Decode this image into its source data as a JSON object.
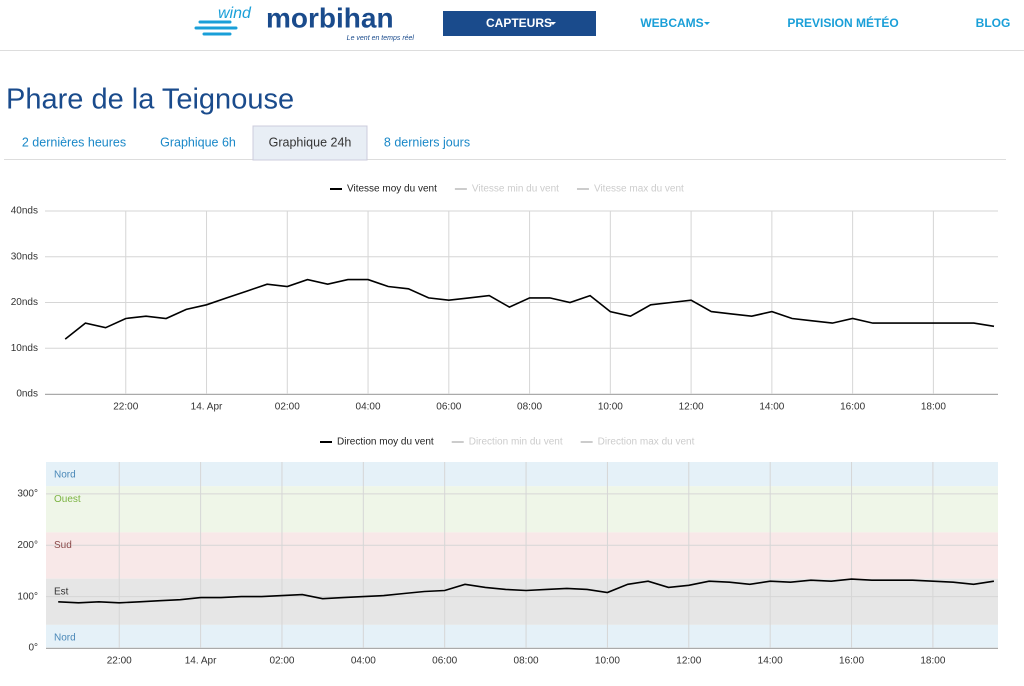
{
  "header": {
    "logo_wind": "wind",
    "logo_brand": "morbihan",
    "tagline": "Le vent en temps réel",
    "nav": [
      "CAPTEURS",
      "WEBCAMS",
      "PREVISION MÉTÉO",
      "BLOG"
    ]
  },
  "page_title": "Phare de la Teignouse",
  "tabs": [
    "2 dernières heures",
    "Graphique 6h",
    "Graphique 24h",
    "8 derniers jours"
  ],
  "active_tab": 2,
  "chart_data": [
    {
      "type": "line",
      "series": [
        {
          "name": "Vitesse moy du vent",
          "color": "#000000",
          "values": [
            12,
            15.5,
            14.5,
            16.5,
            17,
            16.5,
            18.5,
            19.5,
            21,
            22.5,
            24,
            23.5,
            25,
            24,
            25,
            25,
            23.5,
            23,
            21,
            20.5,
            21,
            21.5,
            19,
            21,
            21,
            20,
            21.5,
            18,
            17,
            19.5,
            20,
            20.5,
            18,
            17.5,
            17,
            18,
            16.5,
            16,
            15.5,
            16.5,
            15.5,
            15.5,
            15.5,
            15.5,
            15.5,
            15.5,
            14.8
          ]
        }
      ],
      "hidden_series": [
        "Vitesse min du vent",
        "Vitesse max du vent"
      ],
      "x": [
        20.5,
        21,
        21.5,
        22,
        22.5,
        23,
        23.5,
        24,
        24.5,
        25,
        25.5,
        26,
        26.5,
        27,
        27.5,
        28,
        28.5,
        29,
        29.5,
        30,
        30.5,
        31,
        31.5,
        32,
        32.5,
        33,
        33.5,
        34,
        34.5,
        35,
        35.5,
        36,
        36.5,
        37,
        37.5,
        38,
        38.5,
        39,
        39.5,
        40,
        40.5,
        41,
        41.5,
        42,
        42.5,
        43,
        43.5
      ],
      "xlim": [
        20,
        43.6
      ],
      "xticks": [
        {
          "value": 22,
          "label": "22:00"
        },
        {
          "value": 24,
          "label": "14. Apr"
        },
        {
          "value": 26,
          "label": "02:00"
        },
        {
          "value": 28,
          "label": "04:00"
        },
        {
          "value": 30,
          "label": "06:00"
        },
        {
          "value": 32,
          "label": "08:00"
        },
        {
          "value": 34,
          "label": "10:00"
        },
        {
          "value": 36,
          "label": "12:00"
        },
        {
          "value": 38,
          "label": "14:00"
        },
        {
          "value": 40,
          "label": "16:00"
        },
        {
          "value": 42,
          "label": "18:00"
        }
      ],
      "ylim": [
        0,
        40
      ],
      "yticks": [
        {
          "value": 0,
          "label": "0nds"
        },
        {
          "value": 10,
          "label": "10nds"
        },
        {
          "value": 20,
          "label": "20nds"
        },
        {
          "value": 30,
          "label": "30nds"
        },
        {
          "value": 40,
          "label": "40nds"
        }
      ],
      "grid": true
    },
    {
      "type": "line",
      "series": [
        {
          "name": "Direction moy du vent",
          "color": "#000000",
          "values": [
            90,
            88,
            90,
            88,
            90,
            92,
            94,
            98,
            98,
            100,
            100,
            102,
            104,
            96,
            98,
            100,
            102,
            106,
            110,
            112,
            124,
            118,
            114,
            112,
            114,
            116,
            114,
            108,
            124,
            130,
            118,
            122,
            130,
            128,
            124,
            130,
            128,
            132,
            130,
            134,
            132,
            132,
            132,
            130,
            128,
            124,
            130
          ]
        }
      ],
      "hidden_series": [
        "Direction min du vent",
        "Direction max du vent"
      ],
      "x": [
        20.5,
        21,
        21.5,
        22,
        22.5,
        23,
        23.5,
        24,
        24.5,
        25,
        25.5,
        26,
        26.5,
        27,
        27.5,
        28,
        28.5,
        29,
        29.5,
        30,
        30.5,
        31,
        31.5,
        32,
        32.5,
        33,
        33.5,
        34,
        34.5,
        35,
        35.5,
        36,
        36.5,
        37,
        37.5,
        38,
        38.5,
        39,
        39.5,
        40,
        40.5,
        41,
        41.5,
        42,
        42.5,
        43,
        43.5
      ],
      "xlim": [
        20.2,
        43.6
      ],
      "xticks": [
        {
          "value": 22,
          "label": "22:00"
        },
        {
          "value": 24,
          "label": "14. Apr"
        },
        {
          "value": 26,
          "label": "02:00"
        },
        {
          "value": 28,
          "label": "04:00"
        },
        {
          "value": 30,
          "label": "06:00"
        },
        {
          "value": 32,
          "label": "08:00"
        },
        {
          "value": 34,
          "label": "10:00"
        },
        {
          "value": 36,
          "label": "12:00"
        },
        {
          "value": 38,
          "label": "14:00"
        },
        {
          "value": 40,
          "label": "16:00"
        },
        {
          "value": 42,
          "label": "18:00"
        }
      ],
      "ylim": [
        0,
        362
      ],
      "yticks": [
        {
          "value": 0,
          "label": "0°"
        },
        {
          "value": 100,
          "label": "100°"
        },
        {
          "value": 200,
          "label": "200°"
        },
        {
          "value": 300,
          "label": "300°"
        }
      ],
      "bands": [
        {
          "label": "Nord",
          "from": 315,
          "to": 362,
          "color": "#e5f1f8",
          "text_color": "#4a88b8"
        },
        {
          "label": "Ouest",
          "from": 225,
          "to": 315,
          "color": "#eff6e8",
          "text_color": "#7cb342"
        },
        {
          "label": "Sud",
          "from": 135,
          "to": 225,
          "color": "#f8e8e8",
          "text_color": "#8b4a4a"
        },
        {
          "label": "Est",
          "from": 45,
          "to": 135,
          "color": "#e6e6e6",
          "text_color": "#333333"
        },
        {
          "label": "Nord",
          "from": 0,
          "to": 45,
          "color": "#e5f1f8",
          "text_color": "#4a88b8"
        }
      ],
      "grid": true
    }
  ]
}
